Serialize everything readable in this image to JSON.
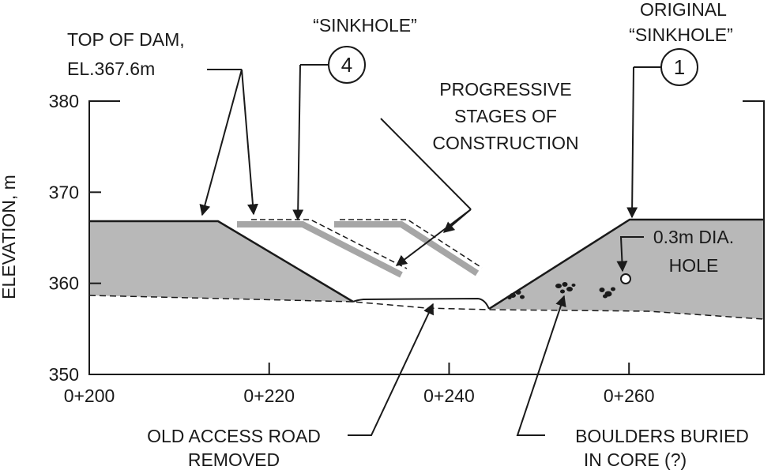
{
  "axis": {
    "ylabel": "ELEVATION, m",
    "y_ticks": [
      {
        "value": 350,
        "label": "350"
      },
      {
        "value": 360,
        "label": "360"
      },
      {
        "value": 370,
        "label": "370"
      },
      {
        "value": 380,
        "label": "380"
      }
    ],
    "x_ticks": [
      {
        "value": 200,
        "label": "0+200"
      },
      {
        "value": 220,
        "label": "0+220"
      },
      {
        "value": 240,
        "label": "0+240"
      },
      {
        "value": 260,
        "label": "0+260"
      }
    ],
    "x_range": [
      200,
      275
    ],
    "y_range": [
      350,
      380
    ]
  },
  "labels": {
    "top_of_dam_line1": "TOP OF DAM,",
    "top_of_dam_line2": "EL.367.6m",
    "sinkhole": "“SINKHOLE”",
    "original_line1": "ORIGINAL",
    "original_line2": "“SINKHOLE”",
    "progressive_line1": "PROGRESSIVE",
    "progressive_line2": "STAGES OF",
    "progressive_line3": "CONSTRUCTION",
    "hole_line1": "0.3m DIA.",
    "hole_line2": "HOLE",
    "road_line1": "OLD ACCESS ROAD",
    "road_line2": "REMOVED",
    "boulders_line1": "BOULDERS BURIED",
    "boulders_line2": "IN CORE (?)"
  },
  "markers": {
    "sinkhole_4": "4",
    "sinkhole_1": "1"
  },
  "colors": {
    "fill": "#b8b8b8",
    "stage": "#a6a6a6",
    "ink": "#1a1a1a"
  }
}
